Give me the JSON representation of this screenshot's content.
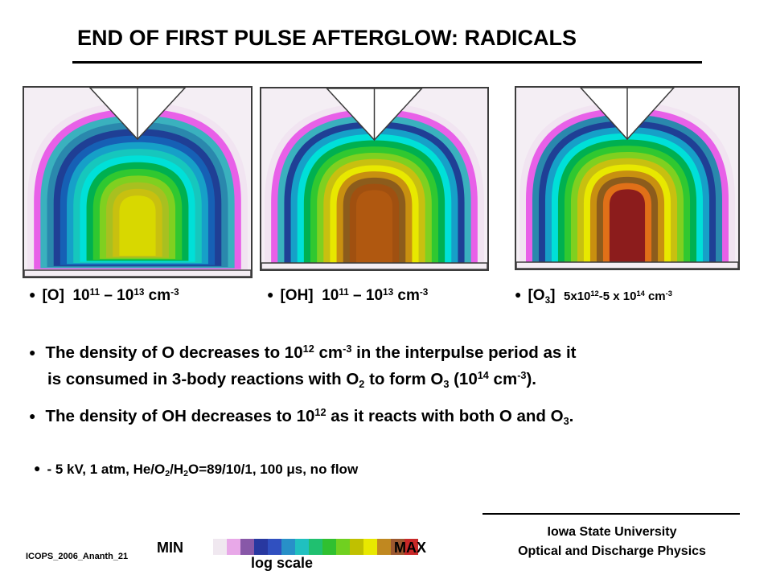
{
  "slide": {
    "title": "END OF FIRST PULSE AFTERGLOW: RADICALS",
    "bullet_glyph": "●",
    "panels": [
      {
        "species": "[O]",
        "range": {
          "base1": "10",
          "exp1": "11",
          "dash": " – ",
          "base2": "10",
          "exp2": "13",
          "unit": " cm",
          "unit_exp": "-3"
        },
        "color_levels": [
          "#f1e4f1",
          "#e860e8",
          "#3ab1be",
          "#2a88ad",
          "#1f3f95",
          "#1660b5",
          "#16a0c8",
          "#16c7bd",
          "#00e0d8",
          "#00b050",
          "#30c830",
          "#7fd020",
          "#a8c020",
          "#c8c010",
          "#d8d800"
        ]
      },
      {
        "species": "[OH]",
        "range": {
          "base1": "10",
          "exp1": "11",
          "dash": " – ",
          "base2": "10",
          "exp2": "13",
          "unit": " cm",
          "unit_exp": "-3"
        },
        "color_levels": [
          "#f1e4f1",
          "#e860e8",
          "#3ab1be",
          "#1f3f95",
          "#16a0c8",
          "#00e0d8",
          "#00b050",
          "#30c830",
          "#7fd020",
          "#c8c010",
          "#e8e800",
          "#c89010",
          "#8c5c1c",
          "#a05010",
          "#b05810"
        ]
      },
      {
        "species": "[O",
        "species_sub": "3",
        "species_end": "]",
        "range": {
          "prefix": "5x10",
          "exp1": "12",
          "middle": "-5 x 10",
          "exp2": "14",
          "unit": " cm",
          "unit_exp": "-3"
        },
        "color_levels": [
          "#f1e4f1",
          "#e860e8",
          "#2a88ad",
          "#1f3f95",
          "#16a0c8",
          "#00e0d8",
          "#00b050",
          "#30c830",
          "#7fd020",
          "#c8c010",
          "#e8e800",
          "#c89010",
          "#8c5c1c",
          "#e07018",
          "#8c1c1c"
        ]
      }
    ],
    "paragraphs": {
      "p1": {
        "line1_a": "The density of O decreases to 10",
        "line1_sup": "12",
        "line1_b": " cm",
        "line1_sup2": "-3",
        "line1_c": " in the interpulse period as it",
        "line2_a": "is consumed in 3-body reactions with O",
        "line2_sub": "2",
        "line2_b": " to form O",
        "line2_sub2": "3",
        "line2_c": " (10",
        "line2_sup": "14",
        "line2_d": " cm",
        "line2_sup2": "-3",
        "line2_e": ")."
      },
      "p2": {
        "a": "The density of OH decreases to 10",
        "sup": "12",
        "b": " as it reacts with both O and O",
        "sub": "3",
        "c": "."
      }
    },
    "conditions": {
      "a": "- 5 kV, 1 atm,  He/O",
      "sub1": "2",
      "b": "/H",
      "sub2": "2",
      "c": "O=89/10/1, 100 ",
      "mu": "μ",
      "d": "s, no flow"
    },
    "footer": {
      "id": "ICOPS_2006_Ananth_21",
      "university": "Iowa State University",
      "group": "Optical and Discharge Physics"
    },
    "colorbar": {
      "min_label": "MIN",
      "max_label": "MAX",
      "scale_label": "log scale",
      "colors": [
        "#f0e8f0",
        "#e8a8e8",
        "#8858a8",
        "#2838a0",
        "#3050c0",
        "#2890c8",
        "#20c0c0",
        "#20c070",
        "#30c030",
        "#70d020",
        "#c0c000",
        "#e8e800",
        "#c08820",
        "#9c5830",
        "#c82828"
      ]
    }
  }
}
